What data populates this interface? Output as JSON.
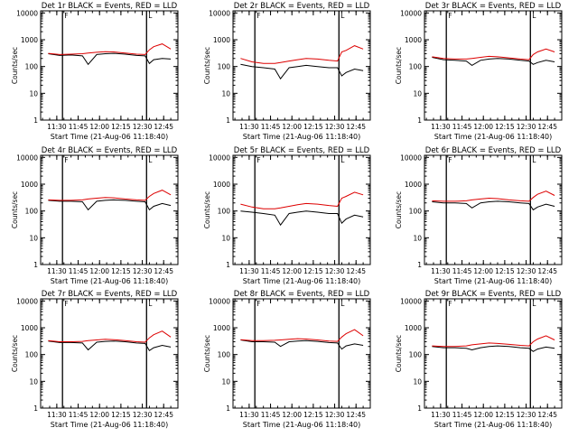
{
  "xlabel": "Start Time (21-Aug-06 11:18:40)",
  "ylabel": "Counts/sec",
  "xtick_labels": [
    "11:30",
    "11:45",
    "12:00",
    "12:15",
    "12:30",
    "12:45"
  ],
  "ytick_labels": [
    "1",
    "10",
    "100",
    "1000",
    "10000"
  ],
  "marker_labels": [
    "F",
    "L"
  ],
  "colors": {
    "events": "#000000",
    "lld": "#dd0000",
    "axes": "#000000"
  },
  "chart_data": [
    {
      "type": "line",
      "title": "Det 1r BLACK = Events, RED = LLD",
      "yscale": "log",
      "ylim": [
        1,
        12000
      ],
      "x_range": [
        "11:18:40",
        "12:55:00"
      ],
      "markers": [
        "11:34",
        "12:33",
        "12:55"
      ],
      "categories": [
        "11:24",
        "11:32",
        "11:40",
        "11:48",
        "11:52",
        "11:58",
        "12:04",
        "12:10",
        "12:18",
        "12:26",
        "12:32",
        "12:35",
        "12:38",
        "12:44",
        "12:50"
      ],
      "series": [
        {
          "name": "Events",
          "values": [
            300,
            260,
            270,
            250,
            120,
            280,
            300,
            310,
            290,
            260,
            250,
            130,
            180,
            200,
            190
          ]
        },
        {
          "name": "LLD",
          "values": [
            310,
            280,
            290,
            300,
            320,
            340,
            360,
            350,
            320,
            290,
            280,
            420,
            550,
            700,
            450
          ]
        }
      ]
    },
    {
      "type": "line",
      "title": "Det 2r BLACK = Events, RED = LLD",
      "yscale": "log",
      "ylim": [
        1,
        12000
      ],
      "x_range": [
        "11:18:40",
        "12:55:00"
      ],
      "markers": [
        "11:34",
        "12:33",
        "12:55"
      ],
      "categories": [
        "11:24",
        "11:32",
        "11:40",
        "11:48",
        "11:52",
        "11:58",
        "12:04",
        "12:10",
        "12:18",
        "12:26",
        "12:32",
        "12:35",
        "12:38",
        "12:44",
        "12:50"
      ],
      "series": [
        {
          "name": "Events",
          "values": [
            120,
            100,
            90,
            80,
            35,
            90,
            100,
            110,
            100,
            90,
            90,
            45,
            60,
            80,
            70
          ]
        },
        {
          "name": "LLD",
          "values": [
            200,
            150,
            130,
            130,
            140,
            160,
            180,
            200,
            190,
            170,
            160,
            350,
            400,
            600,
            450
          ]
        }
      ]
    },
    {
      "type": "line",
      "title": "Det 3r BLACK = Events, RED = LLD",
      "yscale": "log",
      "ylim": [
        1,
        12000
      ],
      "x_range": [
        "11:18:40",
        "12:55:00"
      ],
      "markers": [
        "11:34",
        "12:33",
        "12:55"
      ],
      "categories": [
        "11:24",
        "11:32",
        "11:40",
        "11:48",
        "11:52",
        "11:58",
        "12:04",
        "12:10",
        "12:18",
        "12:26",
        "12:32",
        "12:35",
        "12:38",
        "12:44",
        "12:50"
      ],
      "series": [
        {
          "name": "Events",
          "values": [
            220,
            180,
            170,
            160,
            110,
            170,
            190,
            200,
            190,
            170,
            160,
            120,
            140,
            170,
            150
          ]
        },
        {
          "name": "LLD",
          "values": [
            230,
            200,
            190,
            190,
            200,
            220,
            240,
            230,
            210,
            190,
            180,
            280,
            350,
            450,
            350
          ]
        }
      ]
    },
    {
      "type": "line",
      "title": "Det 4r BLACK = Events, RED = LLD",
      "yscale": "log",
      "ylim": [
        1,
        12000
      ],
      "x_range": [
        "11:18:40",
        "12:55:00"
      ],
      "markers": [
        "11:34",
        "12:33",
        "12:55"
      ],
      "categories": [
        "11:24",
        "11:32",
        "11:40",
        "11:48",
        "11:52",
        "11:58",
        "12:04",
        "12:10",
        "12:18",
        "12:26",
        "12:32",
        "12:35",
        "12:38",
        "12:44",
        "12:50"
      ],
      "series": [
        {
          "name": "Events",
          "values": [
            250,
            230,
            230,
            220,
            110,
            230,
            250,
            260,
            250,
            230,
            220,
            110,
            150,
            190,
            160
          ]
        },
        {
          "name": "LLD",
          "values": [
            260,
            250,
            250,
            260,
            280,
            300,
            320,
            310,
            280,
            260,
            250,
            350,
            450,
            600,
            400
          ]
        }
      ]
    },
    {
      "type": "line",
      "title": "Det 5r BLACK = Events, RED = LLD",
      "yscale": "log",
      "ylim": [
        1,
        12000
      ],
      "x_range": [
        "11:18:40",
        "12:55:00"
      ],
      "markers": [
        "11:34",
        "12:33",
        "12:55"
      ],
      "categories": [
        "11:24",
        "11:32",
        "11:40",
        "11:48",
        "11:52",
        "11:58",
        "12:04",
        "12:10",
        "12:18",
        "12:26",
        "12:32",
        "12:35",
        "12:38",
        "12:44",
        "12:50"
      ],
      "series": [
        {
          "name": "Events",
          "values": [
            100,
            90,
            80,
            70,
            30,
            80,
            90,
            100,
            90,
            80,
            80,
            35,
            50,
            70,
            60
          ]
        },
        {
          "name": "LLD",
          "values": [
            180,
            140,
            120,
            120,
            130,
            150,
            170,
            190,
            180,
            160,
            150,
            300,
            350,
            500,
            400
          ]
        }
      ]
    },
    {
      "type": "line",
      "title": "Det 6r BLACK = Events, RED = LLD",
      "yscale": "log",
      "ylim": [
        1,
        12000
      ],
      "x_range": [
        "11:18:40",
        "12:55:00"
      ],
      "markers": [
        "11:34",
        "12:33",
        "12:55"
      ],
      "categories": [
        "11:24",
        "11:32",
        "11:40",
        "11:48",
        "11:52",
        "11:58",
        "12:04",
        "12:10",
        "12:18",
        "12:26",
        "12:32",
        "12:35",
        "12:38",
        "12:44",
        "12:50"
      ],
      "series": [
        {
          "name": "Events",
          "values": [
            220,
            200,
            200,
            190,
            130,
            200,
            220,
            230,
            220,
            200,
            190,
            110,
            140,
            180,
            150
          ]
        },
        {
          "name": "LLD",
          "values": [
            240,
            230,
            230,
            240,
            260,
            280,
            300,
            290,
            260,
            240,
            230,
            320,
            420,
            550,
            380
          ]
        }
      ]
    },
    {
      "type": "line",
      "title": "Det 7r BLACK = Events, RED = LLD",
      "yscale": "log",
      "ylim": [
        1,
        12000
      ],
      "x_range": [
        "11:18:40",
        "12:55:00"
      ],
      "markers": [
        "11:34",
        "12:33",
        "12:55"
      ],
      "categories": [
        "11:24",
        "11:32",
        "11:40",
        "11:48",
        "11:52",
        "11:58",
        "12:04",
        "12:10",
        "12:18",
        "12:26",
        "12:32",
        "12:35",
        "12:38",
        "12:44",
        "12:50"
      ],
      "series": [
        {
          "name": "Events",
          "values": [
            320,
            280,
            280,
            270,
            150,
            290,
            310,
            320,
            300,
            270,
            260,
            140,
            180,
            220,
            190
          ]
        },
        {
          "name": "LLD",
          "values": [
            330,
            300,
            300,
            310,
            330,
            350,
            370,
            360,
            330,
            300,
            290,
            420,
            550,
            750,
            450
          ]
        }
      ]
    },
    {
      "type": "line",
      "title": "Det 8r BLACK = Events, RED = LLD",
      "yscale": "log",
      "ylim": [
        1,
        12000
      ],
      "x_range": [
        "11:18:40",
        "12:55:00"
      ],
      "markers": [
        "11:34",
        "12:33",
        "12:55"
      ],
      "categories": [
        "11:24",
        "11:32",
        "11:40",
        "11:48",
        "11:52",
        "11:58",
        "12:04",
        "12:10",
        "12:18",
        "12:26",
        "12:32",
        "12:35",
        "12:38",
        "12:44",
        "12:50"
      ],
      "series": [
        {
          "name": "Events",
          "values": [
            350,
            300,
            300,
            290,
            200,
            300,
            320,
            330,
            310,
            280,
            270,
            160,
            210,
            250,
            220
          ]
        },
        {
          "name": "LLD",
          "values": [
            360,
            330,
            330,
            340,
            350,
            370,
            390,
            380,
            350,
            320,
            310,
            450,
            600,
            850,
            500
          ]
        }
      ]
    },
    {
      "type": "line",
      "title": "Det 9r BLACK = Events, RED = LLD",
      "yscale": "log",
      "ylim": [
        1,
        12000
      ],
      "x_range": [
        "11:18:40",
        "12:55:00"
      ],
      "markers": [
        "11:34",
        "12:33",
        "12:55"
      ],
      "categories": [
        "11:24",
        "11:32",
        "11:40",
        "11:48",
        "11:52",
        "11:58",
        "12:04",
        "12:10",
        "12:18",
        "12:26",
        "12:32",
        "12:35",
        "12:38",
        "12:44",
        "12:50"
      ],
      "series": [
        {
          "name": "Events",
          "values": [
            200,
            180,
            180,
            170,
            150,
            180,
            200,
            210,
            200,
            180,
            170,
            130,
            160,
            190,
            170
          ]
        },
        {
          "name": "LLD",
          "values": [
            210,
            200,
            200,
            210,
            230,
            250,
            270,
            260,
            240,
            220,
            210,
            300,
            380,
            500,
            350
          ]
        }
      ]
    }
  ]
}
